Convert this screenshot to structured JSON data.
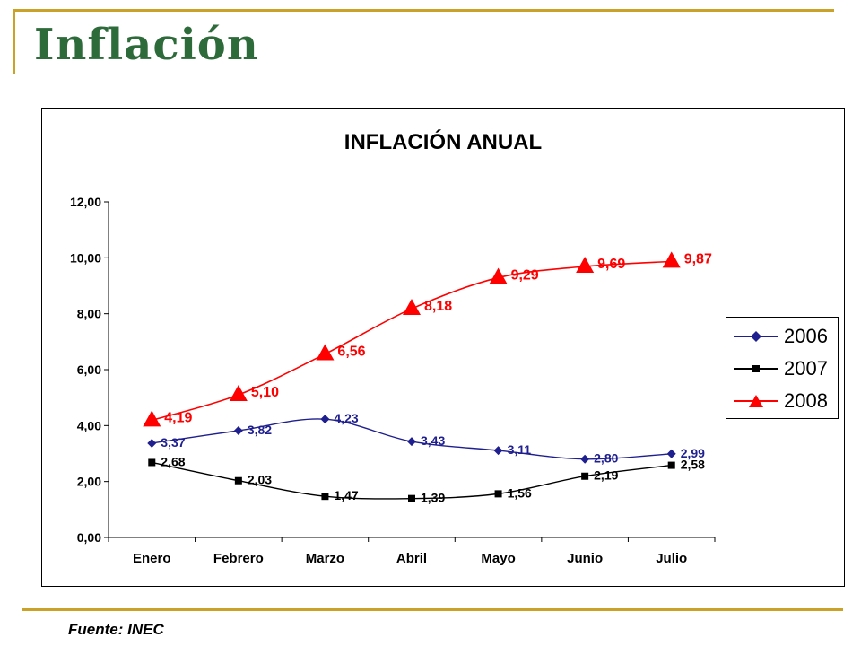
{
  "slide": {
    "title": "Inflación",
    "source": "Fuente: INEC"
  },
  "colors": {
    "accent_rule": "#c9a227",
    "title_green": "#2e6b3a"
  },
  "chart_data": {
    "type": "line",
    "title": "INFLACIÓN ANUAL",
    "xlabel": "",
    "ylabel": "",
    "categories": [
      "Enero",
      "Febrero",
      "Marzo",
      "Abril",
      "Mayo",
      "Junio",
      "Julio"
    ],
    "ylim": [
      0,
      12
    ],
    "yticks": [
      "0,00",
      "2,00",
      "4,00",
      "6,00",
      "8,00",
      "10,00",
      "12,00"
    ],
    "grid": false,
    "legend_position": "right",
    "series": [
      {
        "name": "2006",
        "color": "#1f1f8f",
        "marker": "diamond",
        "values": [
          3.37,
          3.82,
          4.23,
          3.43,
          3.11,
          2.8,
          2.99
        ],
        "labels": [
          "3,37",
          "3,82",
          "4,23",
          "3,43",
          "3,11",
          "2,80",
          "2,99"
        ]
      },
      {
        "name": "2007",
        "color": "#000000",
        "marker": "square",
        "values": [
          2.68,
          2.03,
          1.47,
          1.39,
          1.56,
          2.19,
          2.58
        ],
        "labels": [
          "2,68",
          "2,03",
          "1,47",
          "1,39",
          "1,56",
          "2,19",
          "2,58"
        ]
      },
      {
        "name": "2008",
        "color": "#ff0000",
        "marker": "triangle",
        "values": [
          4.19,
          5.1,
          6.56,
          8.18,
          9.29,
          9.69,
          9.87
        ],
        "labels": [
          "4,19",
          "5,10",
          "6,56",
          "8,18",
          "9,29",
          "9,69",
          "9,87"
        ]
      }
    ]
  }
}
